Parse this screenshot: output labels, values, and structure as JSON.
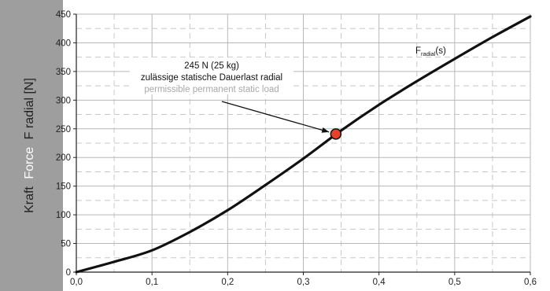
{
  "chart_data": {
    "type": "line",
    "ylabel_parts": [
      "Kraft",
      "Force",
      "F radial [N]"
    ],
    "xlim": [
      0,
      0.6
    ],
    "ylim": [
      0,
      450
    ],
    "x_ticks": [
      "0,0",
      "0,1",
      "0,2",
      "0,3",
      "0,4",
      "0,5",
      "0,6"
    ],
    "y_ticks": [
      "0",
      "50",
      "100",
      "150",
      "200",
      "250",
      "300",
      "350",
      "400",
      "450"
    ],
    "grid": true,
    "series": [
      {
        "label_main": "F",
        "label_sub": "radial",
        "label_tail": "(s)",
        "x": [
          0.0,
          0.05,
          0.1,
          0.15,
          0.2,
          0.25,
          0.3,
          0.35,
          0.4,
          0.45,
          0.5,
          0.55,
          0.6
        ],
        "y": [
          0,
          18,
          38,
          70,
          108,
          152,
          198,
          247,
          292,
          333,
          372,
          410,
          446
        ]
      }
    ],
    "marker": {
      "x": 0.343,
      "y": 241,
      "color": "#e8402a",
      "line1": "245 N (25 kg)",
      "line2": "zulässige statische Dauerlast radial",
      "line3": "permissible permanent static load"
    },
    "colors": {
      "ylabel_band": "#9e9e9e",
      "line": "#111111",
      "grid_major": "#b8b8b8",
      "grid_minor": "#c8c8c8",
      "annotation_secondary": "#a8a8a8"
    }
  }
}
